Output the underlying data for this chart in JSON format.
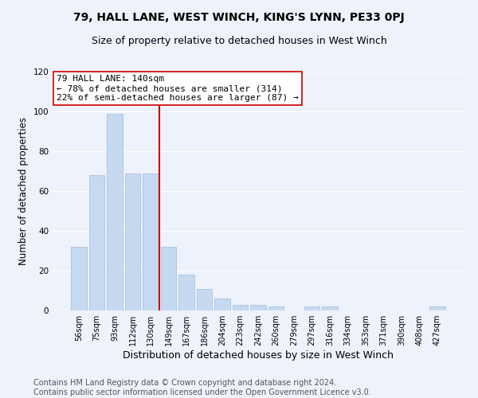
{
  "title1": "79, HALL LANE, WEST WINCH, KING'S LYNN, PE33 0PJ",
  "title2": "Size of property relative to detached houses in West Winch",
  "xlabel": "Distribution of detached houses by size in West Winch",
  "ylabel": "Number of detached properties",
  "categories": [
    "56sqm",
    "75sqm",
    "93sqm",
    "112sqm",
    "130sqm",
    "149sqm",
    "167sqm",
    "186sqm",
    "204sqm",
    "223sqm",
    "242sqm",
    "260sqm",
    "279sqm",
    "297sqm",
    "316sqm",
    "334sqm",
    "353sqm",
    "371sqm",
    "390sqm",
    "408sqm",
    "427sqm"
  ],
  "values": [
    32,
    68,
    99,
    69,
    69,
    32,
    18,
    11,
    6,
    3,
    3,
    2,
    0,
    2,
    2,
    0,
    0,
    0,
    0,
    0,
    2
  ],
  "bar_color": "#c5d9f1",
  "bar_edge_color": "#a0bcd8",
  "red_line_x": 4.5,
  "red_line_color": "#cc0000",
  "annotation_box_color": "#ffffff",
  "annotation_box_edge": "#cc0000",
  "annotation_line1": "79 HALL LANE: 140sqm",
  "annotation_line2": "← 78% of detached houses are smaller (314)",
  "annotation_line3": "22% of semi-detached houses are larger (87) →",
  "annotation_fontsize": 8,
  "annotation_font": "DejaVu Sans Mono",
  "title1_fontsize": 10,
  "title2_fontsize": 9,
  "xlabel_fontsize": 9,
  "ylabel_fontsize": 8.5,
  "footer_line1": "Contains HM Land Registry data © Crown copyright and database right 2024.",
  "footer_line2": "Contains public sector information licensed under the Open Government Licence v3.0.",
  "footer_fontsize": 7,
  "ylim": [
    0,
    120
  ],
  "yticks": [
    0,
    20,
    40,
    60,
    80,
    100,
    120
  ],
  "background_color": "#eef2fb",
  "grid_color": "#ffffff"
}
